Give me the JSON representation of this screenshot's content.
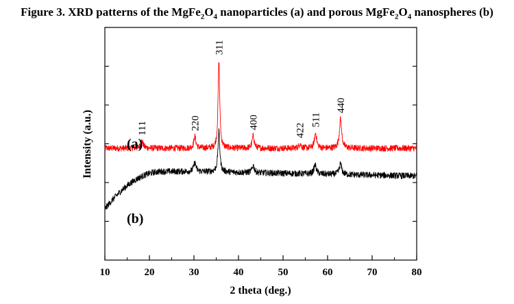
{
  "caption": {
    "prefix": "Figure 3. XRD patterns of  the MgFe",
    "sub1": "2",
    "mid1": "O",
    "sub2": "4",
    "mid2": " nanoparticles (a) and porous MgFe",
    "sub3": "2",
    "mid3": "O",
    "sub4": "4",
    "suffix": " nanospheres (b)"
  },
  "chart_data": {
    "type": "line",
    "title": "Figure 3. XRD patterns of the MgFe2O4 nanoparticles (a) and porous MgFe2O4 nanospheres (b)",
    "xlabel": "2 theta (deg.)",
    "ylabel": "Intensity (a.u.)",
    "xlim": [
      10,
      80
    ],
    "x_ticks": [
      "10",
      "20",
      "30",
      "40",
      "50",
      "60",
      "70",
      "80"
    ],
    "grid": false,
    "series": [
      {
        "name": "(a)",
        "color": "#ff0000",
        "baseline": 1.0,
        "peaks": [
          {
            "x": 18.3,
            "height": 0.08,
            "width": 0.35
          },
          {
            "x": 30.2,
            "height": 0.13,
            "width": 0.28
          },
          {
            "x": 35.6,
            "height": 0.98,
            "width": 0.22
          },
          {
            "x": 43.3,
            "height": 0.14,
            "width": 0.28
          },
          {
            "x": 53.8,
            "height": 0.05,
            "width": 0.3
          },
          {
            "x": 57.3,
            "height": 0.17,
            "width": 0.3
          },
          {
            "x": 62.9,
            "height": 0.33,
            "width": 0.3
          }
        ]
      },
      {
        "name": "(b)",
        "color": "#000000",
        "baseline": 0.32,
        "background_rise": 0.42,
        "peaks": [
          {
            "x": 30.2,
            "height": 0.1,
            "width": 0.3
          },
          {
            "x": 35.6,
            "height": 0.45,
            "width": 0.25
          },
          {
            "x": 43.3,
            "height": 0.08,
            "width": 0.3
          },
          {
            "x": 57.2,
            "height": 0.1,
            "width": 0.32
          },
          {
            "x": 62.9,
            "height": 0.12,
            "width": 0.32
          }
        ]
      }
    ],
    "peak_labels": [
      {
        "x": 18.3,
        "label": "111"
      },
      {
        "x": 30.2,
        "label": "220"
      },
      {
        "x": 35.6,
        "label": "311"
      },
      {
        "x": 43.3,
        "label": "400"
      },
      {
        "x": 53.8,
        "label": "422"
      },
      {
        "x": 57.3,
        "label": "511"
      },
      {
        "x": 62.9,
        "label": "440"
      }
    ],
    "series_labels": [
      "(a)",
      "(b)"
    ]
  }
}
